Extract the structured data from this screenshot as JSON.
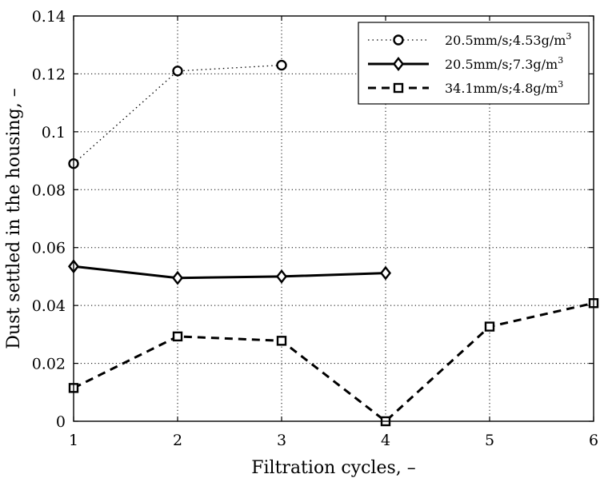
{
  "chart_data": {
    "type": "line",
    "title": "",
    "xlabel": "Filtration cycles, –",
    "ylabel": "Dust settled in the housing, –",
    "xlim": [
      1,
      6
    ],
    "ylim": [
      0,
      0.14
    ],
    "xticks": [
      1,
      2,
      3,
      4,
      5,
      6
    ],
    "xtick_labels": [
      "1",
      "2",
      "3",
      "4",
      "5",
      "6"
    ],
    "yticks": [
      0,
      0.02,
      0.04,
      0.06,
      0.08,
      0.1,
      0.12,
      0.14
    ],
    "ytick_labels": [
      "0",
      "0.02",
      "0.04",
      "0.06",
      "0.08",
      "0.1",
      "0.12",
      "0.14"
    ],
    "grid": true,
    "legend_position": "top-right",
    "series": [
      {
        "name": "20.5mm/s;4.53g/m3",
        "label_main": "20.5mm/s;4.53g/m",
        "label_sup": "3",
        "line_style": "dotted",
        "marker": "circle",
        "color": "#000000",
        "x": [
          1,
          2,
          3
        ],
        "values": [
          0.089,
          0.121,
          0.123
        ]
      },
      {
        "name": "20.5mm/s;7.3g/m3",
        "label_main": "20.5mm/s;7.3g/m",
        "label_sup": "3",
        "line_style": "solid",
        "marker": "diamond",
        "color": "#000000",
        "x": [
          1,
          2,
          3,
          4
        ],
        "values": [
          0.0535,
          0.0495,
          0.05,
          0.0512
        ]
      },
      {
        "name": "34.1mm/s;4.8g/m3",
        "label_main": "34.1mm/s;4.8g/m",
        "label_sup": "3",
        "line_style": "dashed",
        "marker": "square",
        "color": "#000000",
        "x": [
          1,
          2,
          3,
          4,
          5,
          6
        ],
        "values": [
          0.0115,
          0.0293,
          0.0278,
          0.0,
          0.0327,
          0.0408
        ]
      }
    ]
  }
}
